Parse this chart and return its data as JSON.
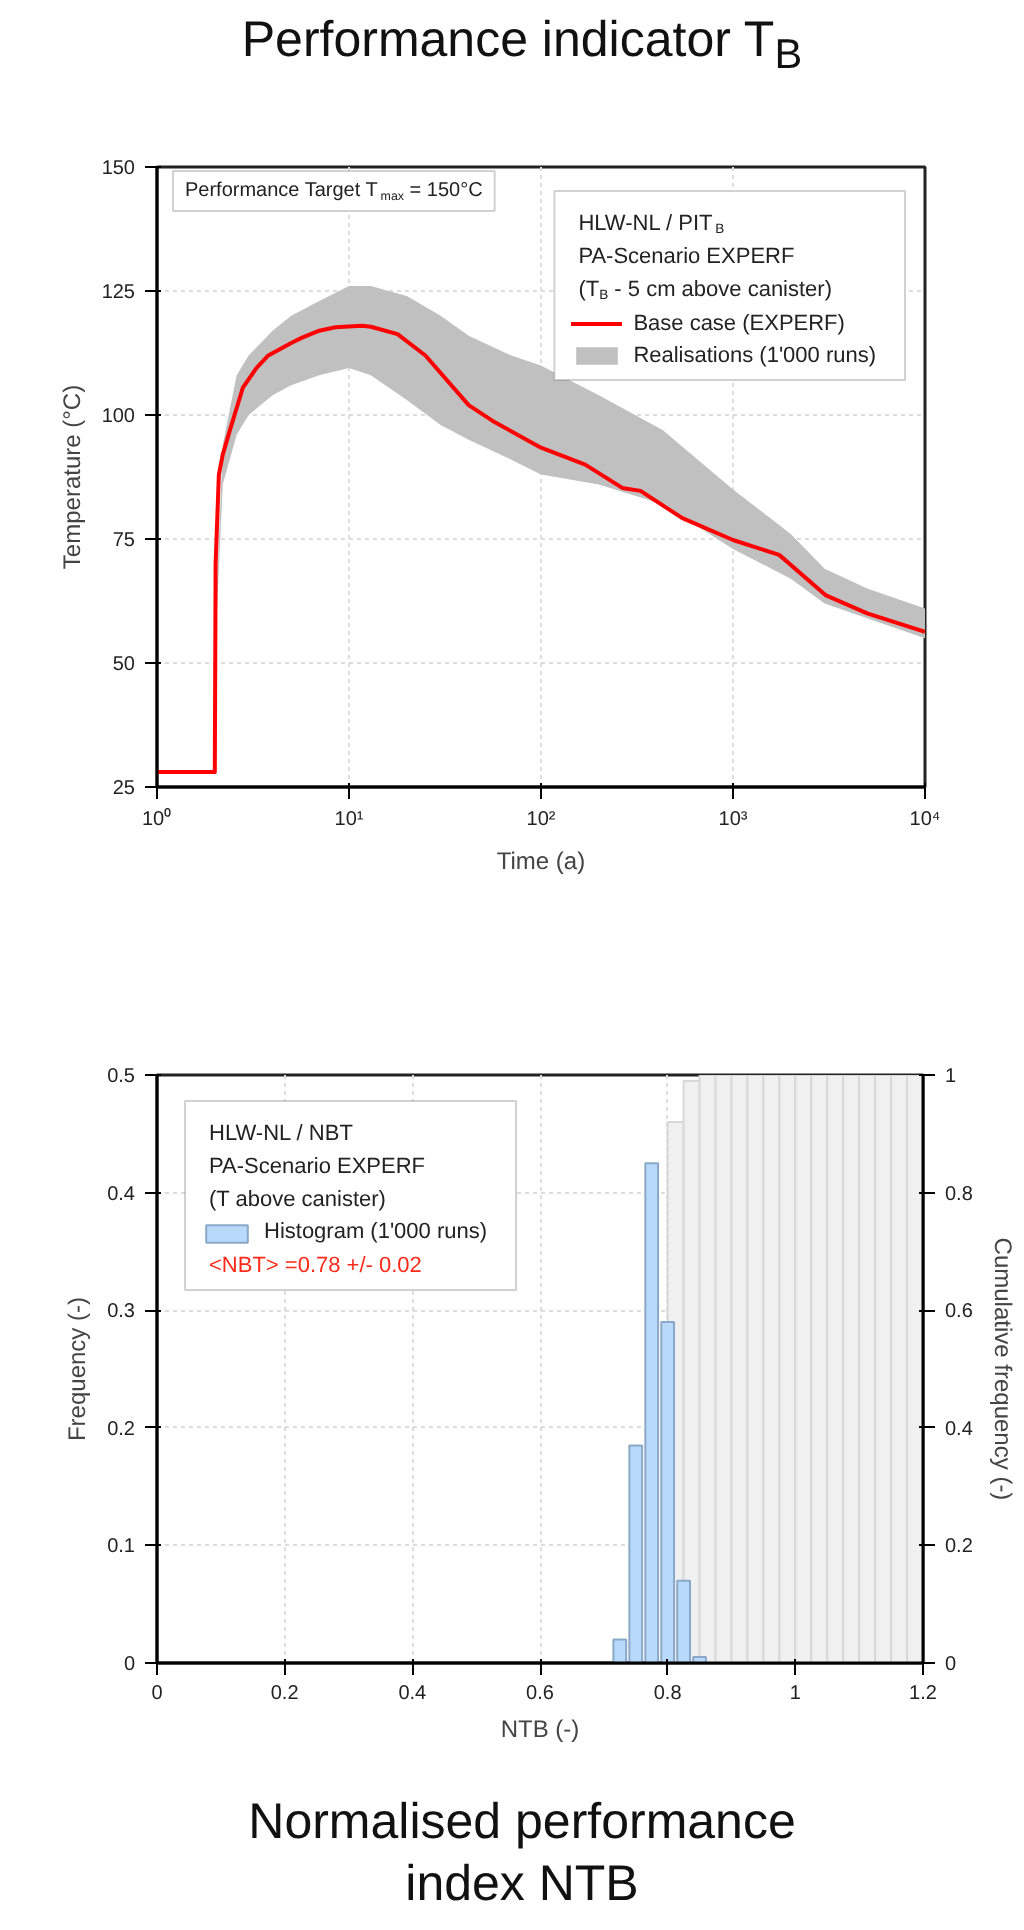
{
  "chart_data": [
    {
      "type": "line",
      "title": "Performance indicator T$_{B}$",
      "xlabel": "Time (a)",
      "ylabel": "Temperature (°C)",
      "legend_title": "HLW-NL / PIT$_{B}$\nPA-Scenario EXPERF\n(T$_{B}$ - 5 cm above canister)",
      "annotations": [
        "Performance Target T$_{max}$ = 150°C"
      ],
      "log": "x",
      "grid": true,
      "legend": "top right",
      "xlim": [
        1,
        10000
      ],
      "xticks": [
        {
          "value": 1,
          "label": "10⁰"
        },
        {
          "value": 10,
          "label": "10¹"
        },
        {
          "value": 100,
          "label": "10²"
        },
        {
          "value": 1000,
          "label": "10³"
        },
        {
          "value": 10000,
          "label": "10⁴"
        }
      ],
      "ylim": [
        25,
        150
      ],
      "yticks": [
        25,
        50,
        75,
        100,
        125,
        150
      ],
      "series": [
        {
          "name": "Base case (EXPERF)",
          "color": "#ff0000",
          "x": [
            1,
            2,
            2.02,
            2.1,
            2.2,
            2.4,
            2.8,
            3.3,
            3.8,
            5,
            5.7,
            7,
            8.5,
            11.7,
            13,
            17.9,
            25,
            42,
            56,
            100,
            170,
            265,
            330,
            545,
            1000,
            1740,
            3030,
            5000,
            10000
          ],
          "values": [
            28,
            28,
            70,
            88,
            92,
            97,
            105.5,
            109.5,
            112,
            114.5,
            115.6,
            117,
            117.7,
            118,
            117.8,
            116.3,
            112,
            102,
            98.8,
            93.4,
            90,
            85.3,
            84.7,
            79.2,
            74.8,
            71.8,
            63.7,
            60,
            56.3
          ]
        },
        {
          "name": "Realisations (1'000 runs)",
          "color": "#c0c0c0",
          "x": [
            2.05,
            2.2,
            2.6,
            3,
            4,
            5,
            7,
            10,
            13,
            20,
            30,
            42,
            70,
            100,
            200,
            430,
            1000,
            2000,
            3000,
            5000,
            10000
          ],
          "values": [
            null,
            null,
            null,
            null,
            null,
            null,
            null,
            null,
            null,
            null,
            null,
            null,
            null,
            null,
            null,
            null,
            null,
            null,
            null,
            null,
            null
          ],
          "lower": [
            60,
            86,
            96,
            100,
            104,
            106,
            108,
            109.5,
            108,
            103,
            98,
            95,
            91,
            88,
            86,
            82,
            73,
            67,
            62,
            59,
            55
          ],
          "upper": [
            65,
            94,
            108,
            112,
            117,
            120,
            123,
            126,
            126,
            124,
            120,
            116,
            112,
            110,
            104,
            97,
            85,
            76,
            69,
            65,
            61
          ]
        }
      ]
    },
    {
      "type": "bar",
      "title": "Normalised performance\nindex NTB",
      "xlabel": "NTB (-)",
      "ylabel": "Frequency (-)",
      "y2label": "Cumulative frequency (-)",
      "legend_title": "HLW-NL / NBT\nPA-Scenario EXPERF\n(T above canister)",
      "annotations": [
        "<NBT> =0.78 +/- 0.02"
      ],
      "grid": true,
      "legend": "top left",
      "xlim": [
        0,
        1.2
      ],
      "xticks": [
        0,
        0.2,
        0.4,
        0.6,
        0.8,
        1,
        1.2
      ],
      "ylim": [
        0,
        0.5
      ],
      "yticks": [
        0,
        0.1,
        0.2,
        0.3,
        0.4,
        0.5
      ],
      "y2lim": [
        0,
        1
      ],
      "y2ticks": [
        0,
        0.2,
        0.4,
        0.6,
        0.8,
        1
      ],
      "series": [
        {
          "name": "Histogram (1'000 runs)",
          "color": "#b9d9fb",
          "x": [
            0.725,
            0.75,
            0.775,
            0.8,
            0.825,
            0.85
          ],
          "values": [
            0.02,
            0.185,
            0.425,
            0.29,
            0.07,
            0.005
          ]
        },
        {
          "axis": "y2",
          "color": "#f0f0f0",
          "x": [
            0.8125,
            0.8375,
            0.8625,
            0.8875,
            0.9125,
            0.9375,
            0.9625,
            0.9875,
            1.0125,
            1.0375,
            1.0625,
            1.0875,
            1.1125,
            1.1375,
            1.1625,
            1.1875
          ],
          "values": [
            0.92,
            0.99,
            1,
            1,
            1,
            1,
            1,
            1,
            1,
            1,
            1,
            1,
            1,
            1,
            1,
            1
          ]
        }
      ]
    }
  ]
}
